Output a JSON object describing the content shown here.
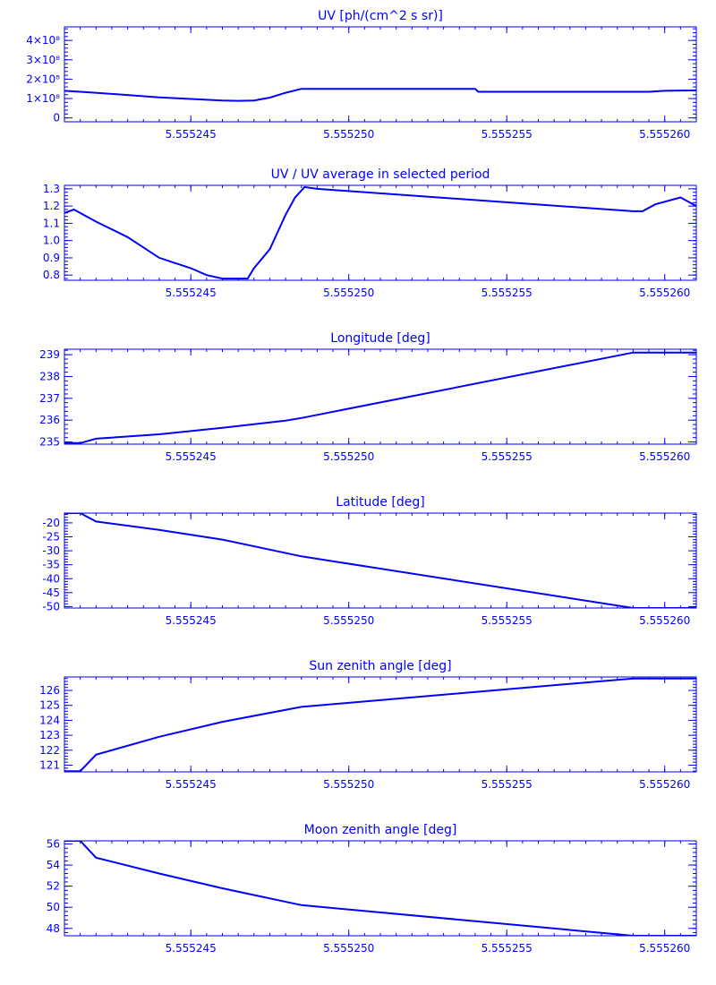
{
  "chart_data": [
    {
      "type": "line",
      "title": "UV [ph/(cm^2 s sr)]",
      "xlim": [
        5.555241,
        5.555261
      ],
      "ylim": [
        -20000000,
        470000000
      ],
      "x_ticks": [
        {
          "value": 5.555245,
          "label": "5.555245"
        },
        {
          "value": 5.55525,
          "label": "5.555250"
        },
        {
          "value": 5.555255,
          "label": "5.555255"
        },
        {
          "value": 5.55526,
          "label": "5.555260"
        }
      ],
      "y_ticks": [
        {
          "value": 0,
          "label": "0"
        },
        {
          "value": 100000000,
          "label": "1×10⁸"
        },
        {
          "value": 200000000,
          "label": "2×10⁸"
        },
        {
          "value": 300000000,
          "label": "3×10⁸"
        },
        {
          "value": 400000000,
          "label": "4×10⁸"
        }
      ],
      "x": [
        5.555241,
        5.555242,
        5.555243,
        5.555244,
        5.555245,
        5.555246,
        5.5552465,
        5.555247,
        5.5552475,
        5.555248,
        5.5552485,
        5.555249,
        5.555254,
        5.5552541,
        5.5552595,
        5.55526,
        5.555261
      ],
      "y": [
        140000000,
        130000000,
        118000000,
        106000000,
        98000000,
        90000000,
        88000000,
        90000000,
        105000000,
        130000000,
        150000000,
        150000000,
        150000000,
        135000000,
        135000000,
        140000000,
        142000000
      ]
    },
    {
      "type": "line",
      "title": "UV / UV average in selected period",
      "xlim": [
        5.555241,
        5.555261
      ],
      "ylim": [
        0.77,
        1.32
      ],
      "x_ticks": [
        {
          "value": 5.555245,
          "label": "5.555245"
        },
        {
          "value": 5.55525,
          "label": "5.555250"
        },
        {
          "value": 5.555255,
          "label": "5.555255"
        },
        {
          "value": 5.55526,
          "label": "5.555260"
        }
      ],
      "y_ticks": [
        {
          "value": 0.8,
          "label": "0.8"
        },
        {
          "value": 0.9,
          "label": "0.9"
        },
        {
          "value": 1.0,
          "label": "1.0"
        },
        {
          "value": 1.1,
          "label": "1.1"
        },
        {
          "value": 1.2,
          "label": "1.2"
        },
        {
          "value": 1.3,
          "label": "1.3"
        }
      ],
      "x": [
        5.555241,
        5.5552413,
        5.555242,
        5.555243,
        5.555244,
        5.555245,
        5.5552455,
        5.555246,
        5.5552465,
        5.5552468,
        5.555247,
        5.5552475,
        5.555248,
        5.5552483,
        5.5552486,
        5.555249,
        5.555259,
        5.5552593,
        5.5552597,
        5.5552605,
        5.555261
      ],
      "y": [
        1.16,
        1.18,
        1.11,
        1.02,
        0.9,
        0.84,
        0.8,
        0.78,
        0.78,
        0.78,
        0.84,
        0.95,
        1.15,
        1.25,
        1.31,
        1.3,
        1.17,
        1.17,
        1.21,
        1.25,
        1.2
      ]
    },
    {
      "type": "line",
      "title": "Longitude [deg]",
      "xlim": [
        5.555241,
        5.555261
      ],
      "ylim": [
        234.9,
        239.25
      ],
      "x_ticks": [
        {
          "value": 5.555245,
          "label": "5.555245"
        },
        {
          "value": 5.55525,
          "label": "5.555250"
        },
        {
          "value": 5.555255,
          "label": "5.555255"
        },
        {
          "value": 5.55526,
          "label": "5.555260"
        }
      ],
      "y_ticks": [
        {
          "value": 235,
          "label": "235"
        },
        {
          "value": 236,
          "label": "236"
        },
        {
          "value": 237,
          "label": "237"
        },
        {
          "value": 238,
          "label": "238"
        },
        {
          "value": 239,
          "label": "239"
        }
      ],
      "x": [
        5.555241,
        5.5552415,
        5.555242,
        5.555244,
        5.555246,
        5.555248,
        5.5552485,
        5.555259,
        5.555261
      ],
      "y": [
        234.95,
        234.95,
        235.15,
        235.35,
        235.65,
        235.98,
        236.1,
        239.1,
        239.1
      ]
    },
    {
      "type": "line",
      "title": "Latitude [deg]",
      "xlim": [
        5.555241,
        5.555261
      ],
      "ylim": [
        -50.5,
        -16.5
      ],
      "x_ticks": [
        {
          "value": 5.555245,
          "label": "5.555245"
        },
        {
          "value": 5.55525,
          "label": "5.555250"
        },
        {
          "value": 5.555255,
          "label": "5.555255"
        },
        {
          "value": 5.55526,
          "label": "5.555260"
        }
      ],
      "y_ticks": [
        {
          "value": -50,
          "label": "-50"
        },
        {
          "value": -45,
          "label": "-45"
        },
        {
          "value": -40,
          "label": "-40"
        },
        {
          "value": -35,
          "label": "-35"
        },
        {
          "value": -30,
          "label": "-30"
        },
        {
          "value": -25,
          "label": "-25"
        },
        {
          "value": -20,
          "label": "-20"
        }
      ],
      "x": [
        5.555241,
        5.5552415,
        5.555242,
        5.555244,
        5.555246,
        5.5552485,
        5.555259,
        5.555261
      ],
      "y": [
        -16.5,
        -16.5,
        -19.5,
        -22.5,
        -26.0,
        -32.0,
        -50.5,
        -50.5
      ]
    },
    {
      "type": "line",
      "title": "Sun zenith angle [deg]",
      "xlim": [
        5.555241,
        5.555261
      ],
      "ylim": [
        120.55,
        126.9
      ],
      "x_ticks": [
        {
          "value": 5.555245,
          "label": "5.555245"
        },
        {
          "value": 5.55525,
          "label": "5.555250"
        },
        {
          "value": 5.555255,
          "label": "5.555255"
        },
        {
          "value": 5.55526,
          "label": "5.555260"
        }
      ],
      "y_ticks": [
        {
          "value": 121,
          "label": "121"
        },
        {
          "value": 122,
          "label": "122"
        },
        {
          "value": 123,
          "label": "123"
        },
        {
          "value": 124,
          "label": "124"
        },
        {
          "value": 125,
          "label": "125"
        },
        {
          "value": 126,
          "label": "126"
        }
      ],
      "x": [
        5.555241,
        5.5552415,
        5.555242,
        5.555244,
        5.555246,
        5.5552485,
        5.555259,
        5.555261
      ],
      "y": [
        120.6,
        120.6,
        121.7,
        122.9,
        123.9,
        124.9,
        126.8,
        126.8
      ]
    },
    {
      "type": "line",
      "title": "Moon zenith angle [deg]",
      "xlim": [
        5.555241,
        5.555261
      ],
      "ylim": [
        47.3,
        56.3
      ],
      "x_ticks": [
        {
          "value": 5.555245,
          "label": "5.555245"
        },
        {
          "value": 5.55525,
          "label": "5.555250"
        },
        {
          "value": 5.555255,
          "label": "5.555255"
        },
        {
          "value": 5.55526,
          "label": "5.555260"
        }
      ],
      "y_ticks": [
        {
          "value": 48,
          "label": "48"
        },
        {
          "value": 50,
          "label": "50"
        },
        {
          "value": 52,
          "label": "52"
        },
        {
          "value": 54,
          "label": "54"
        },
        {
          "value": 56,
          "label": "56"
        }
      ],
      "x": [
        5.555241,
        5.5552415,
        5.555242,
        5.555244,
        5.555246,
        5.5552485,
        5.555259,
        5.555261
      ],
      "y": [
        56.3,
        56.3,
        54.7,
        53.2,
        51.8,
        50.2,
        47.3,
        47.3
      ]
    }
  ],
  "style": {
    "line_color": "#0000ff",
    "axis_color": "#0000ff",
    "text_color": "#0000ff",
    "background": "#ffffff"
  }
}
